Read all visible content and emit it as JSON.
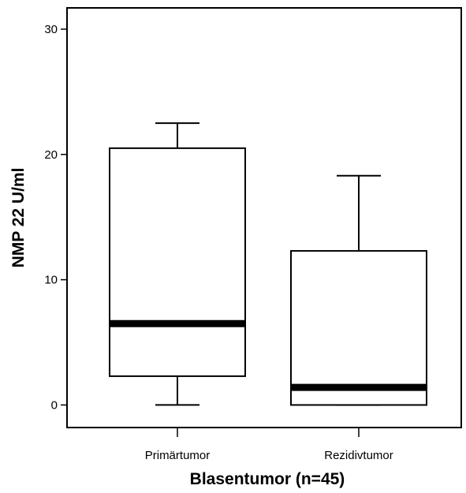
{
  "chart_data": {
    "type": "box",
    "title": "",
    "xlabel": "Blasentumor (n=45)",
    "ylabel": "NMP 22 U/ml",
    "ylim": [
      -1.8,
      31.7
    ],
    "yticks": [
      0,
      10,
      20,
      30
    ],
    "grid": false,
    "legend": "none",
    "categories": [
      "Primärtumor",
      "Rezidivtumor"
    ],
    "boxes": [
      {
        "category": "Primärtumor",
        "whisker_low": 0,
        "q1": 2.3,
        "median": 6.5,
        "q3": 20.5,
        "whisker_high": 22.5
      },
      {
        "category": "Rezidivtumor",
        "whisker_low": 0,
        "q1": 0,
        "median": 1.4,
        "q3": 12.3,
        "whisker_high": 18.3
      }
    ],
    "colors": {
      "box_fill": "#ffffff",
      "stroke": "#000000",
      "median": "#000000"
    }
  }
}
